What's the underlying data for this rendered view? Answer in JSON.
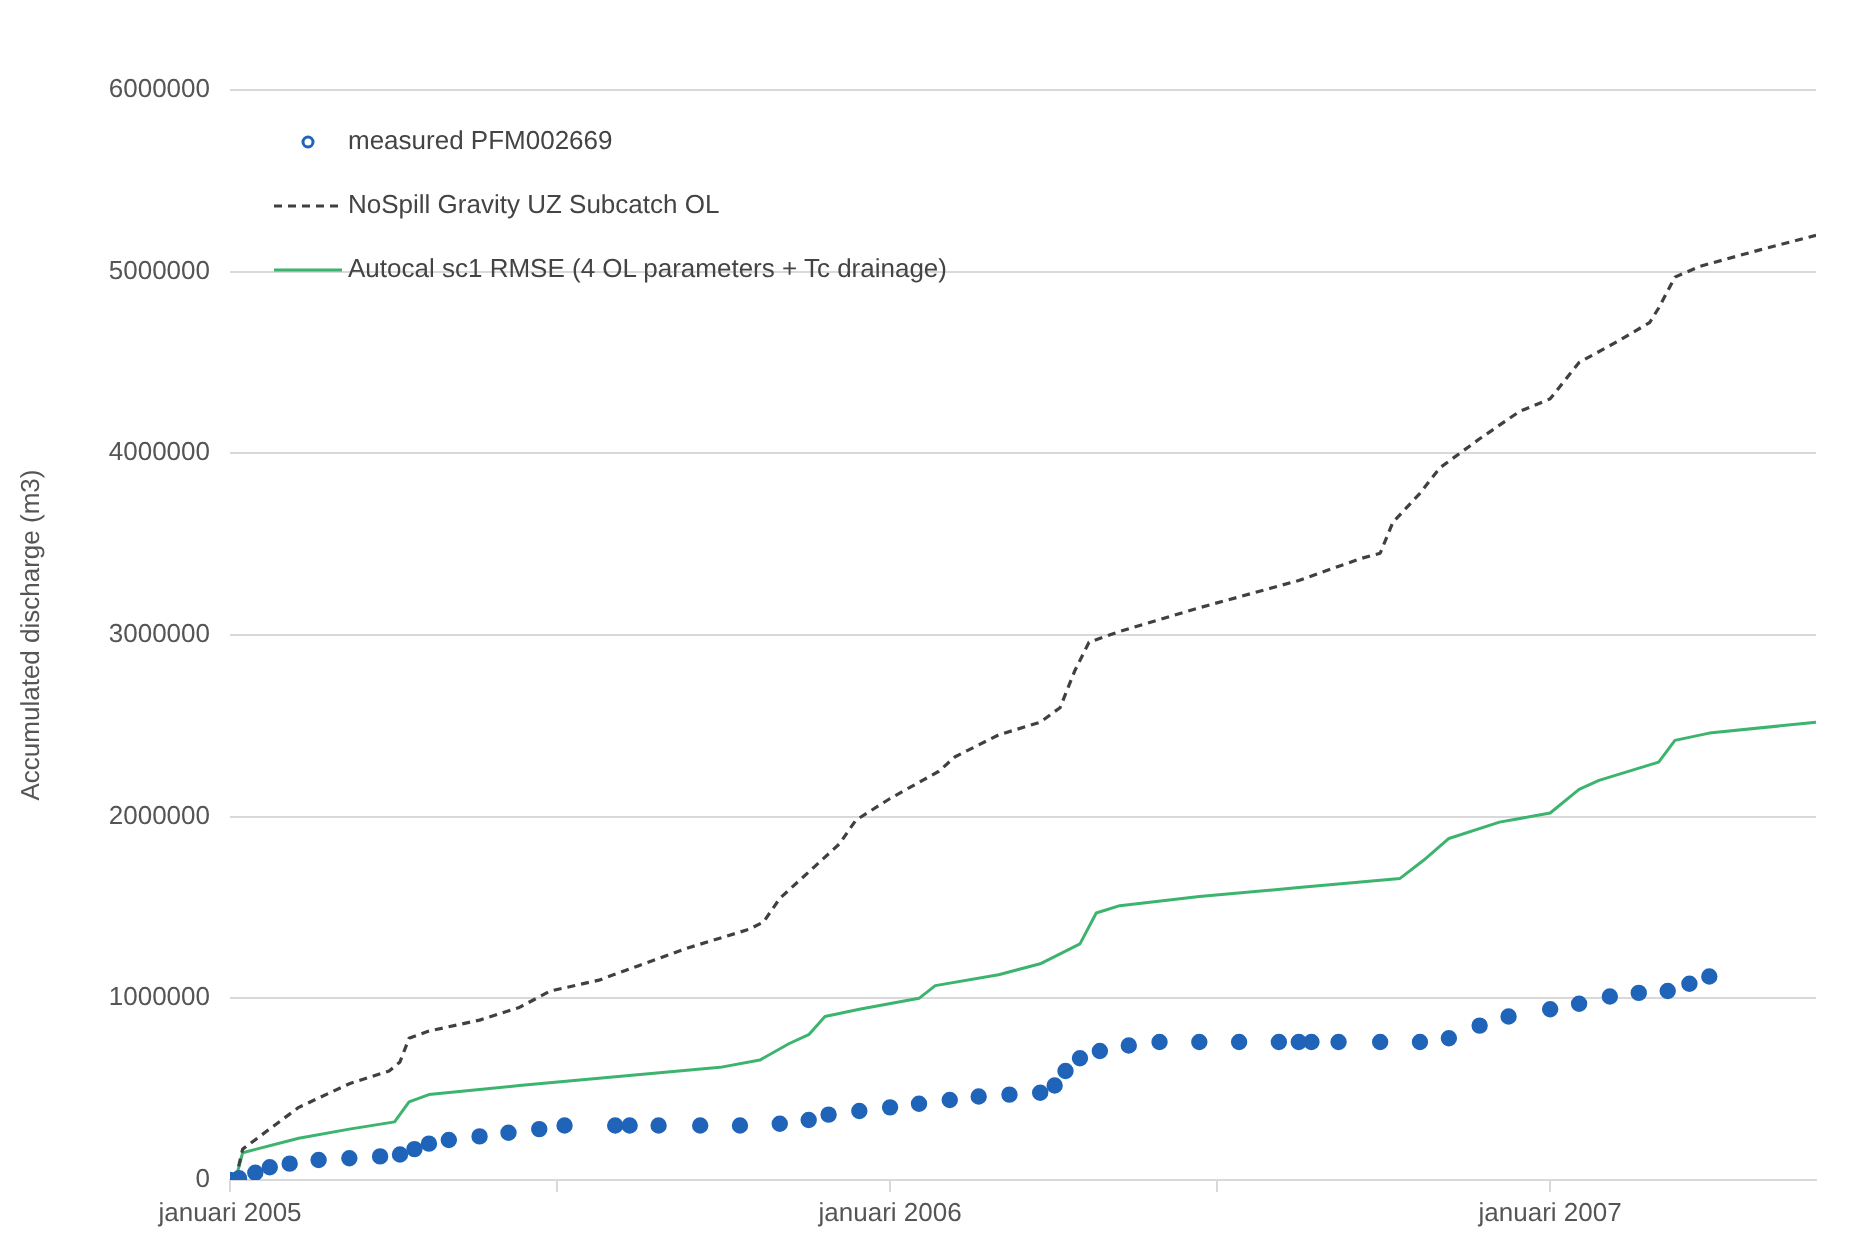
{
  "chart_data": {
    "type": "line",
    "ylabel": "Accumulated discharge (m3)",
    "xlim": [
      "2005-01-01",
      "2007-05-28"
    ],
    "xticks": [
      {
        "value": "2005-01-01",
        "label": "januari 2005"
      },
      {
        "value": "2005-07-01",
        "label": null
      },
      {
        "value": "2006-01-01",
        "label": "januari 2006"
      },
      {
        "value": "2006-07-01",
        "label": null
      },
      {
        "value": "2007-01-01",
        "label": "januari 2007"
      }
    ],
    "ylim": [
      0,
      6000000
    ],
    "yticks": [
      0,
      1000000,
      2000000,
      3000000,
      4000000,
      5000000,
      6000000
    ],
    "grid": "y",
    "legend": "top left",
    "series": [
      {
        "name": "measured PFM002669",
        "type": "scatter",
        "marker": "circle",
        "color": "#1f64b8",
        "x": [
          "2005-01-01",
          "2005-01-06",
          "2005-01-15",
          "2005-01-23",
          "2005-02-03",
          "2005-02-19",
          "2005-03-08",
          "2005-03-25",
          "2005-04-05",
          "2005-04-13",
          "2005-04-21",
          "2005-05-02",
          "2005-05-19",
          "2005-06-04",
          "2005-06-21",
          "2005-07-05",
          "2005-08-02",
          "2005-08-10",
          "2005-08-26",
          "2005-09-18",
          "2005-10-10",
          "2005-11-01",
          "2005-11-17",
          "2005-11-28",
          "2005-12-15",
          "2006-01-01",
          "2006-01-17",
          "2006-02-03",
          "2006-02-19",
          "2006-03-08",
          "2006-03-25",
          "2006-04-02",
          "2006-04-08",
          "2006-04-16",
          "2006-04-27",
          "2006-05-13",
          "2006-05-30",
          "2006-06-21",
          "2006-07-13",
          "2006-08-04",
          "2006-08-15",
          "2006-08-22",
          "2006-09-06",
          "2006-09-29",
          "2006-10-21",
          "2006-11-06",
          "2006-11-23",
          "2006-12-09",
          "2007-01-01",
          "2007-01-17",
          "2007-02-03",
          "2007-02-19",
          "2007-03-07",
          "2007-03-19",
          "2007-03-30"
        ],
        "values": [
          0,
          10000,
          40000,
          70000,
          90000,
          110000,
          120000,
          130000,
          140000,
          170000,
          200000,
          220000,
          240000,
          260000,
          280000,
          300000,
          300000,
          300000,
          300000,
          300000,
          300000,
          310000,
          330000,
          360000,
          380000,
          400000,
          420000,
          440000,
          460000,
          470000,
          480000,
          520000,
          600000,
          670000,
          710000,
          740000,
          760000,
          760000,
          760000,
          760000,
          760000,
          760000,
          760000,
          760000,
          760000,
          780000,
          850000,
          900000,
          940000,
          970000,
          1010000,
          1030000,
          1040000,
          1080000,
          1120000
        ]
      },
      {
        "name": "NoSpill Gravity UZ Subcatch OL",
        "type": "line",
        "line_style": "dashed",
        "color": "#404040",
        "x": [
          "2005-01-04",
          "2005-01-08",
          "2005-02-08",
          "2005-03-08",
          "2005-03-30",
          "2005-04-05",
          "2005-04-10",
          "2005-04-21",
          "2005-05-19",
          "2005-06-10",
          "2005-06-27",
          "2005-07-24",
          "2005-08-15",
          "2005-09-12",
          "2005-10-15",
          "2005-10-23",
          "2005-11-01",
          "2005-11-23",
          "2005-12-04",
          "2005-12-13",
          "2006-01-01",
          "2006-01-28",
          "2006-02-06",
          "2006-03-02",
          "2006-03-25",
          "2006-04-05",
          "2006-04-13",
          "2006-04-21",
          "2006-05-08",
          "2006-06-21",
          "2006-08-15",
          "2006-09-18",
          "2006-09-29",
          "2006-10-06",
          "2006-10-21",
          "2006-11-01",
          "2006-11-23",
          "2006-12-15",
          "2007-01-01",
          "2007-01-17",
          "2007-02-08",
          "2007-02-25",
          "2007-03-02",
          "2007-03-11",
          "2007-03-25",
          "2007-04-27",
          "2007-05-28"
        ],
        "values": [
          0,
          170000,
          400000,
          530000,
          600000,
          650000,
          780000,
          820000,
          880000,
          950000,
          1040000,
          1100000,
          1180000,
          1280000,
          1380000,
          1420000,
          1550000,
          1750000,
          1850000,
          1980000,
          2100000,
          2250000,
          2330000,
          2450000,
          2520000,
          2600000,
          2800000,
          2960000,
          3020000,
          3150000,
          3300000,
          3420000,
          3450000,
          3620000,
          3780000,
          3920000,
          4080000,
          4230000,
          4300000,
          4500000,
          4620000,
          4720000,
          4800000,
          4970000,
          5030000,
          5120000,
          5200000
        ]
      },
      {
        "name": "Autocal sc1 RMSE (4 OL parameters + Tc drainage)",
        "type": "line",
        "line_style": "solid",
        "color": "#3cb46e",
        "x": [
          "2005-01-04",
          "2005-01-08",
          "2005-02-08",
          "2005-03-08",
          "2005-04-02",
          "2005-04-10",
          "2005-04-21",
          "2005-06-10",
          "2005-07-24",
          "2005-09-29",
          "2005-10-21",
          "2005-11-06",
          "2005-11-17",
          "2005-11-26",
          "2005-12-15",
          "2006-01-17",
          "2006-01-26",
          "2006-03-02",
          "2006-03-25",
          "2006-04-16",
          "2006-04-25",
          "2006-05-08",
          "2006-06-21",
          "2006-08-15",
          "2006-10-10",
          "2006-10-23",
          "2006-11-06",
          "2006-12-04",
          "2007-01-01",
          "2007-01-17",
          "2007-01-28",
          "2007-03-02",
          "2007-03-11",
          "2007-03-30",
          "2007-05-28"
        ],
        "values": [
          0,
          150000,
          230000,
          280000,
          320000,
          430000,
          470000,
          520000,
          560000,
          620000,
          660000,
          750000,
          800000,
          900000,
          940000,
          1000000,
          1070000,
          1130000,
          1190000,
          1300000,
          1470000,
          1510000,
          1560000,
          1610000,
          1660000,
          1760000,
          1880000,
          1970000,
          2020000,
          2150000,
          2200000,
          2300000,
          2420000,
          2460000,
          2520000
        ]
      }
    ]
  }
}
